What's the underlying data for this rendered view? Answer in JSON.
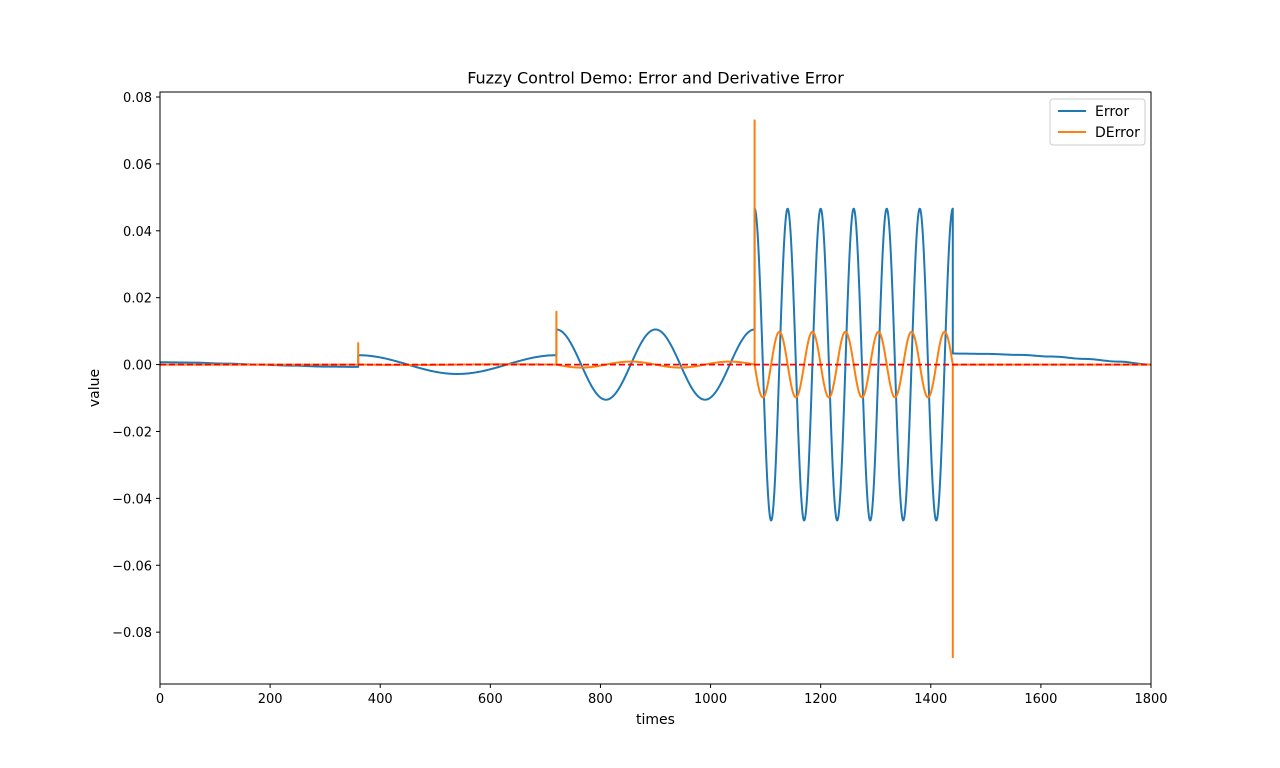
{
  "chart_data": {
    "type": "line",
    "title": "Fuzzy Control Demo: Error and Derivative Error",
    "xlabel": "times",
    "ylabel": "value",
    "xlim": [
      0,
      1800
    ],
    "ylim": [
      -0.0955,
      0.0815
    ],
    "x_ticks": [
      0,
      200,
      400,
      600,
      800,
      1000,
      1200,
      1400,
      1600,
      1800
    ],
    "x_tick_labels": [
      "0",
      "200",
      "400",
      "600",
      "800",
      "1000",
      "1200",
      "1400",
      "1600",
      "1800"
    ],
    "y_ticks": [
      0.08,
      0.06,
      0.04,
      0.02,
      0.0,
      -0.02,
      -0.04,
      -0.06,
      -0.08
    ],
    "y_tick_labels": [
      "0.08",
      "0.06",
      "0.04",
      "0.02",
      "0.00",
      "−0.02",
      "−0.04",
      "−0.06",
      "−0.08"
    ],
    "legend_position": "top-right",
    "reference_line": {
      "y": 0,
      "style": "dashed",
      "color": "#ff0000"
    },
    "series": [
      {
        "name": "Error",
        "color": "#1f77b4",
        "segments": [
          {
            "x_start": 0,
            "x_end": 360,
            "kind": "smooth",
            "points": [
              [
                0,
                0.0007
              ],
              [
                60,
                0.0006
              ],
              [
                120,
                0.0003
              ],
              [
                180,
                0.0
              ],
              [
                240,
                -0.0003
              ],
              [
                300,
                -0.0006
              ],
              [
                360,
                -0.0007
              ]
            ]
          },
          {
            "x_start": 360,
            "x_end": 720,
            "kind": "sine",
            "amplitude": 0.0028,
            "period": 360,
            "phase_deg": 90
          },
          {
            "x_start": 720,
            "x_end": 1080,
            "kind": "sine",
            "amplitude": 0.0105,
            "period": 180,
            "phase_deg": 90
          },
          {
            "x_start": 1080,
            "x_end": 1440,
            "kind": "sine",
            "amplitude": 0.0466,
            "period": 60,
            "phase_deg": 90
          },
          {
            "x_start": 1440,
            "x_end": 1800,
            "kind": "smooth",
            "points": [
              [
                1440,
                0.0033
              ],
              [
                1500,
                0.0032
              ],
              [
                1560,
                0.0029
              ],
              [
                1620,
                0.0024
              ],
              [
                1680,
                0.0017
              ],
              [
                1740,
                0.0009
              ],
              [
                1800,
                0.0
              ]
            ]
          }
        ]
      },
      {
        "name": "DError",
        "color": "#ff7f0e",
        "segments": [
          {
            "x_start": 0,
            "x_end": 360,
            "kind": "flat",
            "value": 0.0
          },
          {
            "x_start": 360,
            "x_end": 720,
            "kind": "sine",
            "amplitude": 0.0001,
            "period": 360,
            "phase_deg": 180
          },
          {
            "x_start": 720,
            "x_end": 1080,
            "kind": "sine",
            "amplitude": 0.0009,
            "period": 180,
            "phase_deg": 180
          },
          {
            "x_start": 1080,
            "x_end": 1440,
            "kind": "sine",
            "amplitude": 0.0098,
            "period": 60,
            "phase_deg": 180
          },
          {
            "x_start": 1440,
            "x_end": 1800,
            "kind": "flat",
            "value": 0.0
          }
        ],
        "spikes": [
          {
            "x": 360,
            "y": 0.0064
          },
          {
            "x": 720,
            "y": 0.0158
          },
          {
            "x": 1080,
            "y": 0.073
          },
          {
            "x": 1440,
            "y": -0.0875
          }
        ]
      }
    ]
  }
}
